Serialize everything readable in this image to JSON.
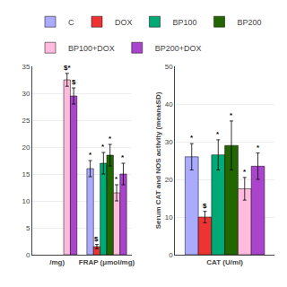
{
  "chart_data": [
    {
      "type": "bar",
      "categories": [
        "/mg)",
        "FRAP (μmol/mg)"
      ],
      "series": [
        {
          "name": "C",
          "color": "#aaaaff",
          "values": [
            null,
            16.0
          ],
          "errors": [
            null,
            1.5
          ],
          "annotations": [
            null,
            "*"
          ]
        },
        {
          "name": "DOX",
          "color": "#ee3333",
          "values": [
            null,
            1.5
          ],
          "errors": [
            null,
            0.4
          ],
          "annotations": [
            null,
            "$"
          ]
        },
        {
          "name": "BP100",
          "color": "#00aa77",
          "values": [
            null,
            17.0
          ],
          "errors": [
            null,
            2.0
          ],
          "annotations": [
            null,
            "*"
          ]
        },
        {
          "name": "BP200",
          "color": "#226600",
          "values": [
            null,
            18.5
          ],
          "errors": [
            null,
            2.0
          ],
          "annotations": [
            null,
            "*"
          ]
        },
        {
          "name": "BP100+DOX",
          "color": "#ffbbdd",
          "values": [
            32.5,
            11.5
          ],
          "errors": [
            1.2,
            1.5
          ],
          "annotations": [
            "$*",
            "*"
          ]
        },
        {
          "name": "BP200+DOX",
          "color": "#aa44cc",
          "values": [
            29.5,
            15.0
          ],
          "errors": [
            1.5,
            2.0
          ],
          "annotations": [
            "$",
            "*"
          ]
        }
      ],
      "ylim": [
        0,
        35
      ],
      "yticks": [
        0,
        5,
        10,
        15,
        20,
        25,
        30,
        35
      ],
      "legend": "top"
    },
    {
      "type": "bar",
      "categories": [
        "CAT (U/ml)"
      ],
      "ylabel": "Serum CAT and NOS activity (mean±SD)",
      "series": [
        {
          "name": "C",
          "color": "#aaaaff",
          "values": [
            26.0
          ],
          "errors": [
            3.5
          ],
          "annotations": [
            "*"
          ]
        },
        {
          "name": "DOX",
          "color": "#ee3333",
          "values": [
            10.0
          ],
          "errors": [
            1.5
          ],
          "annotations": [
            "$"
          ]
        },
        {
          "name": "BP100",
          "color": "#00aa77",
          "values": [
            26.5
          ],
          "errors": [
            4.0
          ],
          "annotations": [
            "*"
          ]
        },
        {
          "name": "BP200",
          "color": "#226600",
          "values": [
            29.0
          ],
          "errors": [
            6.5
          ],
          "annotations": [
            "*"
          ]
        },
        {
          "name": "BP100+DOX",
          "color": "#ffbbdd",
          "values": [
            17.5
          ],
          "errors": [
            3.0
          ],
          "annotations": [
            "*"
          ]
        },
        {
          "name": "BP200+DOX",
          "color": "#aa44cc",
          "values": [
            23.5
          ],
          "errors": [
            3.5
          ],
          "annotations": [
            "*"
          ]
        }
      ],
      "ylim": [
        0,
        50
      ],
      "yticks": [
        0,
        10,
        20,
        30,
        40,
        50
      ]
    }
  ]
}
